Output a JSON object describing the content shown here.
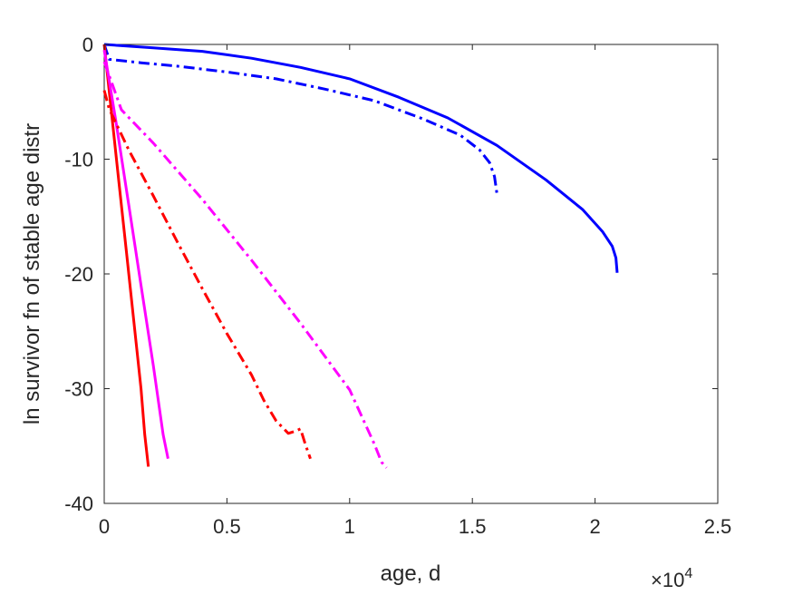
{
  "chart_data": {
    "type": "line",
    "title": "",
    "xlabel": "age, d",
    "ylabel": "ln survivor fn of stable age distr",
    "x_exponent_label": "×10",
    "x_exponent_power": "4",
    "xlim": [
      0,
      25000
    ],
    "ylim": [
      -40,
      0
    ],
    "x_ticks": [
      0,
      5000,
      10000,
      15000,
      20000,
      25000
    ],
    "x_tick_labels": [
      "0",
      "0.5",
      "1",
      "1.5",
      "2",
      "2.5"
    ],
    "y_ticks": [
      0,
      -10,
      -20,
      -30,
      -40
    ],
    "y_tick_labels": [
      "0",
      "-10",
      "-20",
      "-30",
      "-40"
    ],
    "grid": false,
    "legend": "none",
    "series": [
      {
        "color": "#0000ff",
        "style": "solid",
        "x": [
          0,
          2000,
          4000,
          6000,
          8000,
          10000,
          12000,
          14000,
          16000,
          18000,
          19500,
          20300,
          20700,
          20850,
          20900
        ],
        "y": [
          0,
          -0.3,
          -0.6,
          -1.2,
          -2.0,
          -3.0,
          -4.6,
          -6.4,
          -8.8,
          -11.8,
          -14.4,
          -16.3,
          -17.6,
          -18.6,
          -19.9
        ]
      },
      {
        "color": "#0000ff",
        "style": "dashdot",
        "x": [
          0,
          200,
          1500,
          3000,
          5000,
          7000,
          9000,
          11000,
          13000,
          14500,
          15300,
          15700,
          15900,
          16000
        ],
        "y": [
          0,
          -1.3,
          -1.6,
          -1.9,
          -2.4,
          -3.0,
          -3.9,
          -4.9,
          -6.5,
          -7.9,
          -9.2,
          -10.3,
          -11.5,
          -13.0
        ]
      },
      {
        "color": "#ff0000",
        "style": "solid",
        "x": [
          0,
          300,
          600,
          900,
          1200,
          1500,
          1650,
          1800
        ],
        "y": [
          0,
          -6,
          -12,
          -18,
          -24,
          -30,
          -34,
          -36.8
        ]
      },
      {
        "color": "#ff00ff",
        "style": "solid",
        "x": [
          0,
          500,
          1000,
          1500,
          2000,
          2400,
          2600
        ],
        "y": [
          -0.5,
          -7,
          -14,
          -21,
          -28,
          -34,
          -36.1
        ]
      },
      {
        "color": "#ff0000",
        "style": "dashdot",
        "x": [
          0,
          200,
          1000,
          2000,
          3000,
          4000,
          5000,
          6000,
          6500,
          7000,
          7500,
          7800,
          8000,
          8200,
          8400
        ],
        "y": [
          -4,
          -5.6,
          -9.2,
          -13.2,
          -17.3,
          -21.3,
          -25.2,
          -28.8,
          -31.0,
          -32.8,
          -33.9,
          -33.7,
          -33.5,
          -34.9,
          -36.1
        ]
      },
      {
        "color": "#ff00ff",
        "style": "dashdot",
        "x": [
          0,
          700,
          2000,
          4000,
          6000,
          8000,
          10000,
          11000,
          11300,
          11500
        ],
        "y": [
          -1.5,
          -5.7,
          -8.6,
          -13.5,
          -18.8,
          -24.3,
          -30.1,
          -34.8,
          -36.4,
          -36.9
        ]
      }
    ]
  }
}
